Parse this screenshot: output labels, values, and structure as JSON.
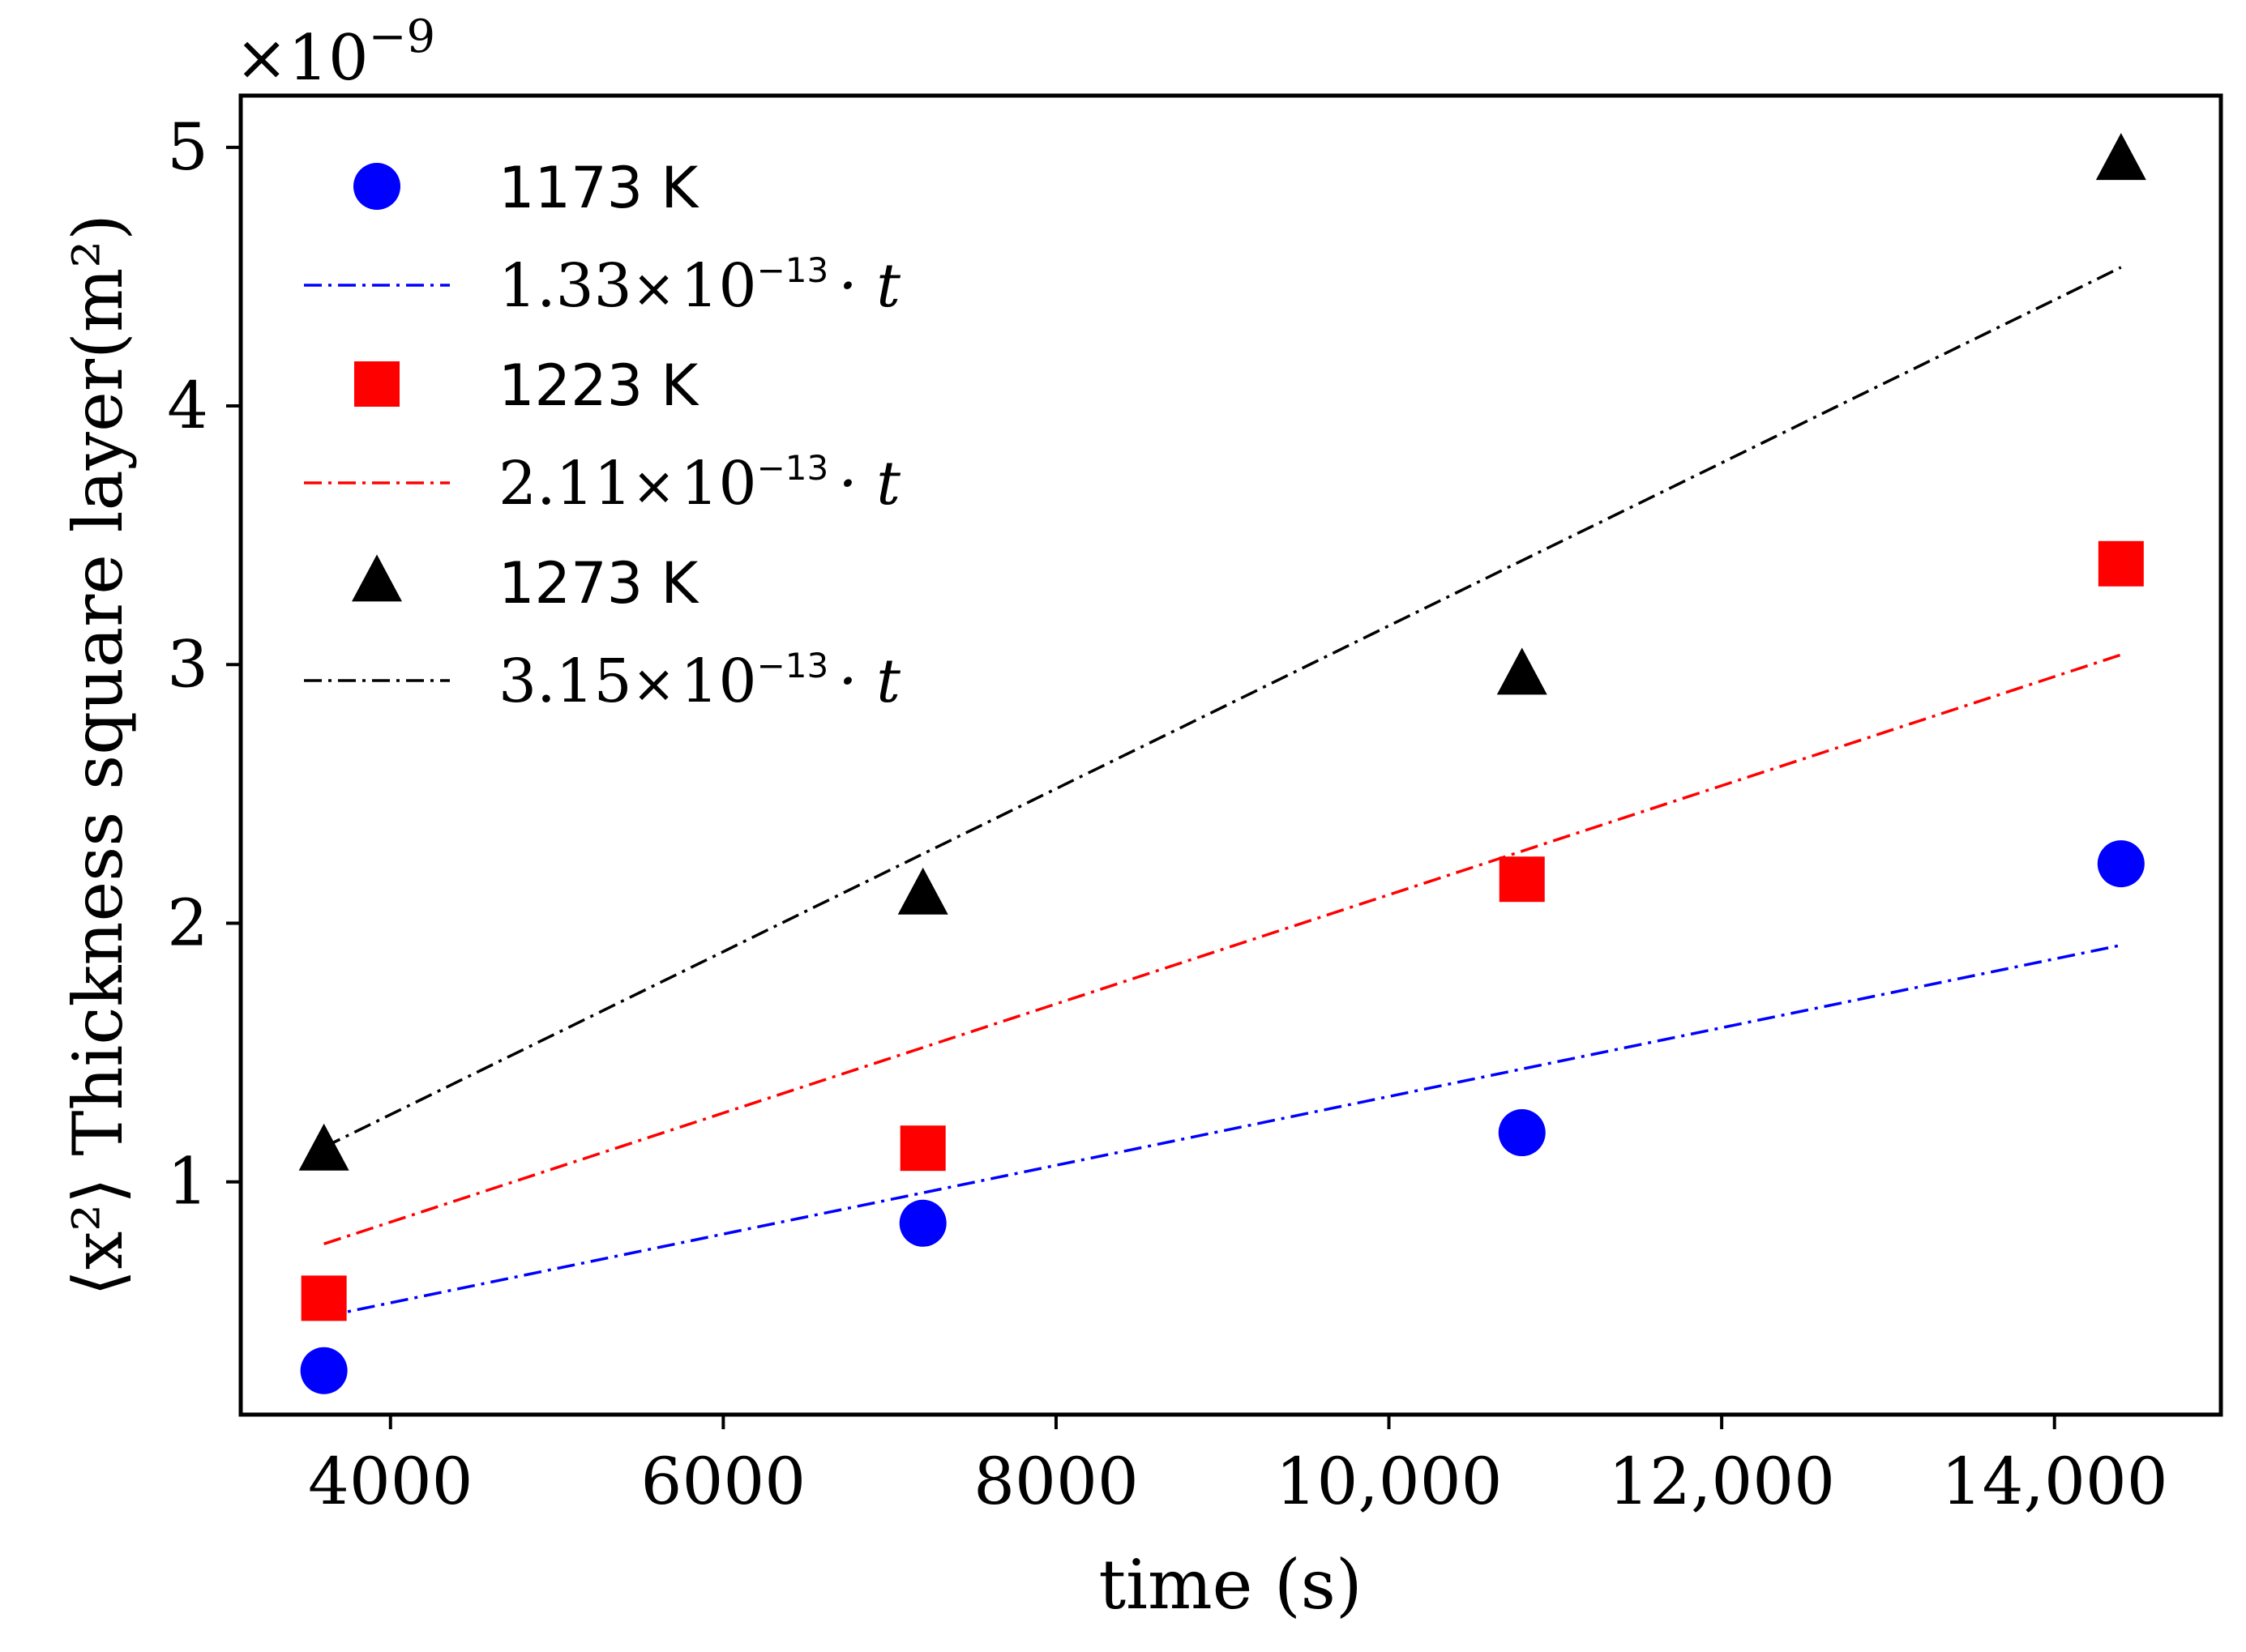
{
  "chart_data": {
    "type": "scatter",
    "title": "",
    "xlabel": "time (s)",
    "ylabel": "⟨x²⟩ Thickness square layer(m²)",
    "y_offset_label": "×10",
    "y_offset_exponent": "−9",
    "xlim": [
      3100,
      15000
    ],
    "ylim": [
      0.1,
      5.2
    ],
    "x_ticks": [
      4000,
      6000,
      8000,
      10000,
      12000,
      14000
    ],
    "x_tick_labels": [
      "4000",
      "6000",
      "8000",
      "10,000",
      "12,000",
      "14,000"
    ],
    "y_ticks": [
      1,
      2,
      3,
      4,
      5
    ],
    "y_tick_labels": [
      "1",
      "2",
      "3",
      "4",
      "5"
    ],
    "grid": false,
    "legend_position": "top-left",
    "series": [
      {
        "name": "1173 K",
        "kind": "points",
        "marker": "circle",
        "color": "#0000ff",
        "x": [
          3600,
          7200,
          10800,
          14400
        ],
        "y": [
          0.27,
          0.84,
          1.19,
          2.23
        ]
      },
      {
        "name": "1.33×10⁻¹³·t",
        "label_mantissa": "1.33",
        "label_times": "×",
        "label_base": "10",
        "label_exp": "−13",
        "label_tail": "· t",
        "kind": "fit",
        "line_style": "dash-dot",
        "color": "#0000ff",
        "x": [
          3600,
          14400
        ],
        "y": [
          0.479,
          1.915
        ]
      },
      {
        "name": "1223 K",
        "kind": "points",
        "marker": "square",
        "color": "#ff0000",
        "x": [
          3600,
          7200,
          10800,
          14400
        ],
        "y": [
          0.55,
          1.13,
          2.17,
          3.39
        ]
      },
      {
        "name": "2.11×10⁻¹³·t",
        "label_mantissa": "2.11",
        "label_times": "×",
        "label_base": "10",
        "label_exp": "−13",
        "label_tail": "· t",
        "kind": "fit",
        "line_style": "dash-dot",
        "color": "#ff0000",
        "x": [
          3600,
          14400
        ],
        "y": [
          0.76,
          3.038
        ]
      },
      {
        "name": "1273 K",
        "kind": "points",
        "marker": "triangle",
        "color": "#000000",
        "x": [
          3600,
          7200,
          10800,
          14400
        ],
        "y": [
          1.12,
          2.11,
          2.96,
          4.95
        ]
      },
      {
        "name": "3.15×10⁻¹³·t",
        "label_mantissa": "3.15",
        "label_times": "×",
        "label_base": "10",
        "label_exp": "−13",
        "label_tail": "· t",
        "kind": "fit",
        "line_style": "dash-dot",
        "color": "#000000",
        "x": [
          3600,
          14400
        ],
        "y": [
          1.134,
          4.536
        ]
      }
    ]
  }
}
